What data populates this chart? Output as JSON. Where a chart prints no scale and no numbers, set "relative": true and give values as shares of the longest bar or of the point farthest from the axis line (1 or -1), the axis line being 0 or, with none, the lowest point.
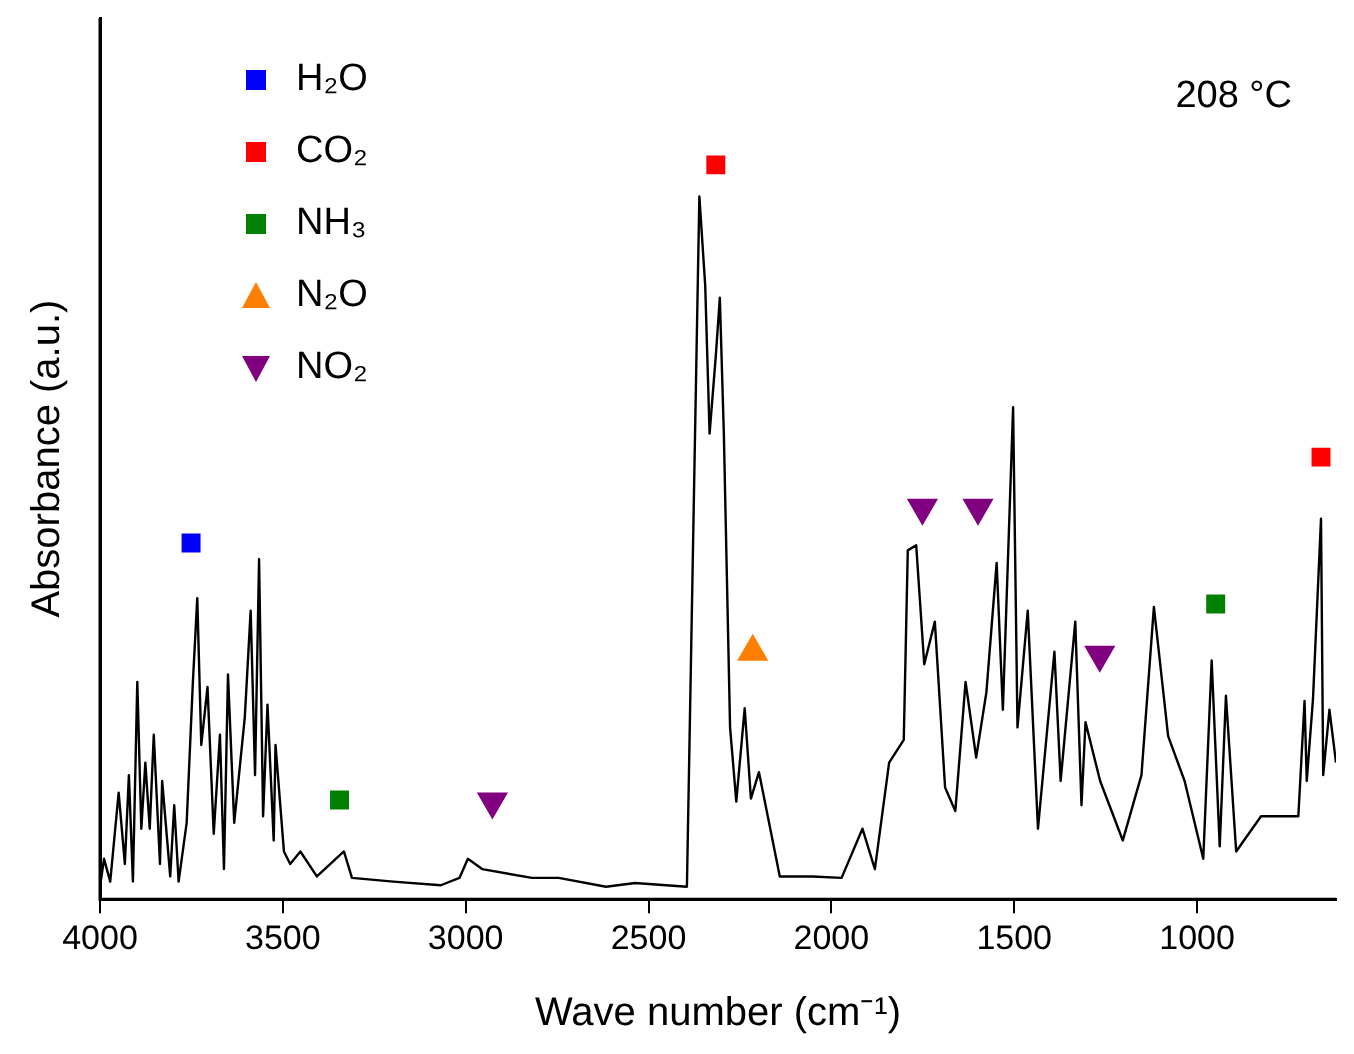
{
  "chart_data": {
    "type": "line",
    "relative": true,
    "xlabel": "Wave number (cm⁻¹)",
    "ylabel": "Absorbance (a.u.)",
    "annotations": [
      "208 °C"
    ],
    "xlim": [
      4000,
      620
    ],
    "xticks": [
      4000,
      3500,
      3000,
      2500,
      2000,
      1500,
      1000
    ],
    "tick_labels": "x",
    "grid": false,
    "legend": "top left",
    "series": [
      {
        "color": "#000000",
        "marker": "none",
        "x": [
          4000,
          3989,
          3972,
          3949,
          3932,
          3921,
          3910,
          3898,
          3887,
          3876,
          3864,
          3853,
          3836,
          3830,
          3808,
          3797,
          3785,
          3763,
          3746,
          3734,
          3723,
          3706,
          3689,
          3672,
          3661,
          3650,
          3633,
          3604,
          3588,
          3576,
          3565,
          3554,
          3542,
          3525,
          3520,
          3497,
          3480,
          3452,
          3407,
          3333,
          3311,
          3198,
          3068,
          3017,
          2994,
          2955,
          2819,
          2746,
          2616,
          2537,
          2395,
          2378,
          2361,
          2345,
          2333,
          2316,
          2305,
          2294,
          2277,
          2260,
          2237,
          2220,
          2198,
          2141,
          2051,
          1972,
          1915,
          1881,
          1842,
          1802,
          1791,
          1768,
          1746,
          1717,
          1689,
          1661,
          1633,
          1604,
          1576,
          1548,
          1531,
          1503,
          1491,
          1463,
          1435,
          1390,
          1373,
          1333,
          1316,
          1305,
          1265,
          1203,
          1152,
          1118,
          1079,
          1034,
          983,
          960,
          938,
          921,
          893,
          825,
          751,
          723,
          706,
          700,
          683,
          661,
          655,
          638,
          620
        ],
        "values": [
          0.017,
          0.055,
          0.024,
          0.145,
          0.048,
          0.169,
          0.024,
          0.296,
          0.096,
          0.186,
          0.096,
          0.224,
          0.048,
          0.161,
          0.031,
          0.128,
          0.024,
          0.104,
          0.296,
          0.41,
          0.21,
          0.289,
          0.089,
          0.224,
          0.041,
          0.306,
          0.104,
          0.248,
          0.393,
          0.169,
          0.463,
          0.113,
          0.265,
          0.08,
          0.21,
          0.065,
          0.048,
          0.065,
          0.031,
          0.065,
          0.029,
          0.024,
          0.019,
          0.029,
          0.055,
          0.041,
          0.029,
          0.029,
          0.017,
          0.022,
          0.017,
          0.489,
          0.957,
          0.836,
          0.634,
          0.74,
          0.819,
          0.634,
          0.234,
          0.133,
          0.26,
          0.137,
          0.173,
          0.031,
          0.031,
          0.029,
          0.096,
          0.041,
          0.186,
          0.217,
          0.475,
          0.482,
          0.32,
          0.378,
          0.152,
          0.12,
          0.296,
          0.193,
          0.282,
          0.458,
          0.258,
          0.67,
          0.234,
          0.393,
          0.096,
          0.337,
          0.161,
          0.378,
          0.128,
          0.241,
          0.161,
          0.08,
          0.169,
          0.398,
          0.222,
          0.161,
          0.055,
          0.325,
          0.072,
          0.277,
          0.065,
          0.113,
          0.113,
          0.113,
          0.27,
          0.161,
          0.272,
          0.518,
          0.169,
          0.258,
          0.186
        ]
      },
      {
        "type": "scatter",
        "name": "H₂O",
        "color": "#0000ff",
        "marker": "square",
        "x": [
          3751
        ],
        "values": [
          0.485
        ]
      },
      {
        "type": "scatter",
        "name": "CO₂",
        "color": "#ff0000",
        "marker": "square",
        "x": [
          2316,
          661
        ],
        "values": [
          1,
          0.602
        ]
      },
      {
        "type": "scatter",
        "name": "NH₃",
        "color": "#008000",
        "marker": "square",
        "x": [
          3345,
          949
        ],
        "values": [
          0.135,
          0.402
        ]
      },
      {
        "type": "scatter",
        "name": "N₂O",
        "color": "#ff8000",
        "marker": "triangle",
        "x": [
          2215
        ],
        "values": [
          0.337
        ]
      },
      {
        "type": "scatter",
        "name": "NO₂",
        "color": "#800080",
        "marker": "triangle-down",
        "x": [
          2927,
          1751,
          1599,
          1266
        ],
        "values": [
          0.133,
          0.533,
          0.533,
          0.333
        ]
      }
    ]
  }
}
